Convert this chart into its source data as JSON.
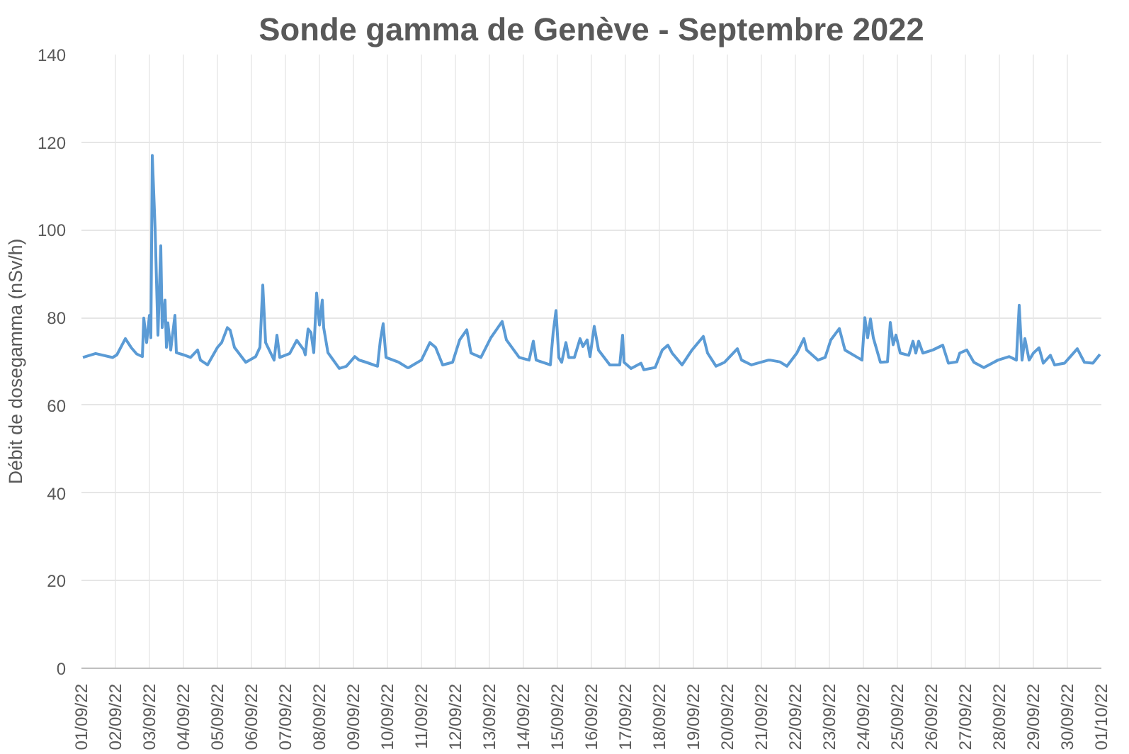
{
  "chart_data": {
    "type": "line",
    "title": "Sonde gamma de Genève - Septembre 2022",
    "ylabel": "Débit de dosegamma (nSv/h)",
    "xlim": [
      "2022-09-01",
      "2022-10-01"
    ],
    "xticks": [
      {
        "value": "2022-09-01",
        "label": "01/09/22"
      },
      {
        "value": "2022-09-02",
        "label": "02/09/22"
      },
      {
        "value": "2022-09-03",
        "label": "03/09/22"
      },
      {
        "value": "2022-09-04",
        "label": "04/09/22"
      },
      {
        "value": "2022-09-05",
        "label": "05/09/22"
      },
      {
        "value": "2022-09-06",
        "label": "06/09/22"
      },
      {
        "value": "2022-09-07",
        "label": "07/09/22"
      },
      {
        "value": "2022-09-08",
        "label": "08/09/22"
      },
      {
        "value": "2022-09-09",
        "label": "09/09/22"
      },
      {
        "value": "2022-09-10",
        "label": "10/09/22"
      },
      {
        "value": "2022-09-11",
        "label": "11/09/22"
      },
      {
        "value": "2022-09-12",
        "label": "12/09/22"
      },
      {
        "value": "2022-09-13",
        "label": "13/09/22"
      },
      {
        "value": "2022-09-14",
        "label": "14/09/22"
      },
      {
        "value": "2022-09-15",
        "label": "15/09/22"
      },
      {
        "value": "2022-09-16",
        "label": "16/09/22"
      },
      {
        "value": "2022-09-17",
        "label": "17/09/22"
      },
      {
        "value": "2022-09-18",
        "label": "18/09/22"
      },
      {
        "value": "2022-09-19",
        "label": "19/09/22"
      },
      {
        "value": "2022-09-20",
        "label": "20/09/22"
      },
      {
        "value": "2022-09-21",
        "label": "21/09/22"
      },
      {
        "value": "2022-09-22",
        "label": "22/09/22"
      },
      {
        "value": "2022-09-23",
        "label": "23/09/22"
      },
      {
        "value": "2022-09-24",
        "label": "24/09/22"
      },
      {
        "value": "2022-09-25",
        "label": "25/09/22"
      },
      {
        "value": "2022-09-26",
        "label": "26/09/22"
      },
      {
        "value": "2022-09-27",
        "label": "27/09/22"
      },
      {
        "value": "2022-09-28",
        "label": "28/09/22"
      },
      {
        "value": "2022-09-29",
        "label": "29/09/22"
      },
      {
        "value": "2022-09-30",
        "label": "30/09/22"
      },
      {
        "value": "2022-10-01",
        "label": "01/10/22"
      }
    ],
    "ylim": [
      0,
      140
    ],
    "yticks": [
      0,
      20,
      40,
      60,
      80,
      100,
      120,
      140
    ],
    "grid": true,
    "marker": "none",
    "line_style": "solid",
    "series": [
      {
        "color": "#5b9bd5",
        "x": [
          "2022-09-01T01:00",
          "2022-09-01T10:00",
          "2022-09-01T22:00",
          "2022-09-02T01:00",
          "2022-09-02T07:00",
          "2022-09-02T11:00",
          "2022-09-02T15:00",
          "2022-09-02T19:00",
          "2022-09-02T20:00",
          "2022-09-02T22:00",
          "2022-09-03T00:00",
          "2022-09-03T01:00",
          "2022-09-03T02:00",
          "2022-09-03T04:00",
          "2022-09-03T06:00",
          "2022-09-03T08:00",
          "2022-09-03T09:00",
          "2022-09-03T11:00",
          "2022-09-03T12:00",
          "2022-09-03T13:00",
          "2022-09-03T15:00",
          "2022-09-03T18:00",
          "2022-09-03T19:00",
          "2022-09-04T00:00",
          "2022-09-04T05:00",
          "2022-09-04T10:00",
          "2022-09-04T12:00",
          "2022-09-04T17:00",
          "2022-09-05T00:00",
          "2022-09-05T03:00",
          "2022-09-05T07:00",
          "2022-09-05T09:00",
          "2022-09-05T12:00",
          "2022-09-05T20:00",
          "2022-09-06T03:00",
          "2022-09-06T06:00",
          "2022-09-06T08:00",
          "2022-09-06T10:00",
          "2022-09-06T16:00",
          "2022-09-06T18:00",
          "2022-09-06T20:00",
          "2022-09-07T03:00",
          "2022-09-07T08:00",
          "2022-09-07T13:00",
          "2022-09-07T14:00",
          "2022-09-07T16:00",
          "2022-09-07T18:00",
          "2022-09-07T20:00",
          "2022-09-07T22:00",
          "2022-09-08T00:00",
          "2022-09-08T02:00",
          "2022-09-08T03:00",
          "2022-09-08T06:00",
          "2022-09-08T14:00",
          "2022-09-08T19:00",
          "2022-09-09T01:00",
          "2022-09-09T04:00",
          "2022-09-09T09:00",
          "2022-09-09T17:00",
          "2022-09-09T19:00",
          "2022-09-09T21:00",
          "2022-09-09T23:00",
          "2022-09-10T08:00",
          "2022-09-10T14:00",
          "2022-09-10T15:00",
          "2022-09-11T00:00",
          "2022-09-11T06:00",
          "2022-09-11T10:00",
          "2022-09-11T15:00",
          "2022-09-11T22:00",
          "2022-09-12T03:00",
          "2022-09-12T08:00",
          "2022-09-12T11:00",
          "2022-09-12T18:00",
          "2022-09-13T01:00",
          "2022-09-13T09:00",
          "2022-09-13T12:00",
          "2022-09-13T21:00",
          "2022-09-14T04:00",
          "2022-09-14T07:00",
          "2022-09-14T09:00",
          "2022-09-14T19:00",
          "2022-09-14T21:00",
          "2022-09-14T23:00",
          "2022-09-15T01:00",
          "2022-09-15T03:00",
          "2022-09-15T06:00",
          "2022-09-15T08:00",
          "2022-09-15T12:00",
          "2022-09-15T16:00",
          "2022-09-15T18:00",
          "2022-09-15T21:00",
          "2022-09-15T23:00",
          "2022-09-16T02:00",
          "2022-09-16T05:00",
          "2022-09-16T13:00",
          "2022-09-16T20:00",
          "2022-09-16T22:00",
          "2022-09-16T23:00",
          "2022-09-17T04:00",
          "2022-09-17T11:00",
          "2022-09-17T13:00",
          "2022-09-17T21:00",
          "2022-09-18T02:00",
          "2022-09-18T06:00",
          "2022-09-18T09:00",
          "2022-09-18T16:00",
          "2022-09-18T23:00",
          "2022-09-19T07:00",
          "2022-09-19T10:00",
          "2022-09-19T16:00",
          "2022-09-19T22:00",
          "2022-09-20T07:00",
          "2022-09-20T10:00",
          "2022-09-20T17:00",
          "2022-09-21T05:00",
          "2022-09-21T06:00",
          "2022-09-21T13:00",
          "2022-09-21T18:00",
          "2022-09-22T01:00",
          "2022-09-22T06:00",
          "2022-09-22T08:00",
          "2022-09-22T16:00",
          "2022-09-22T21:00",
          "2022-09-23T01:00",
          "2022-09-23T07:00",
          "2022-09-23T11:00",
          "2022-09-23T23:00",
          "2022-09-24T01:00",
          "2022-09-24T03:00",
          "2022-09-24T05:00",
          "2022-09-24T07:00",
          "2022-09-24T12:00",
          "2022-09-24T17:00",
          "2022-09-24T19:00",
          "2022-09-24T21:00",
          "2022-09-24T23:00",
          "2022-09-25T02:00",
          "2022-09-25T08:00",
          "2022-09-25T11:00",
          "2022-09-25T13:00",
          "2022-09-25T15:00",
          "2022-09-25T18:00",
          "2022-09-26T01:00",
          "2022-09-26T08:00",
          "2022-09-26T12:00",
          "2022-09-26T18:00",
          "2022-09-26T20:00",
          "2022-09-27T01:00",
          "2022-09-27T06:00",
          "2022-09-27T13:00",
          "2022-09-27T23:00",
          "2022-09-28T07:00",
          "2022-09-28T12:00",
          "2022-09-28T14:00",
          "2022-09-28T16:00",
          "2022-09-28T18:00",
          "2022-09-28T21:00",
          "2022-09-29T00:00",
          "2022-09-29T04:00",
          "2022-09-29T07:00",
          "2022-09-29T12:00",
          "2022-09-29T15:00",
          "2022-09-29T22:00",
          "2022-09-30T07:00",
          "2022-09-30T12:00",
          "2022-09-30T18:00",
          "2022-09-30T23:00"
        ],
        "values": [
          70.9,
          71.8,
          70.9,
          71.5,
          75.2,
          73.2,
          71.7,
          71.1,
          79.9,
          74.3,
          80.5,
          75.4,
          117,
          100.3,
          76,
          96.4,
          77.7,
          84,
          73.2,
          78.8,
          72.6,
          80.5,
          72,
          71.5,
          70.9,
          72.6,
          70.3,
          69.2,
          73.2,
          74.3,
          77.7,
          77.1,
          73.2,
          69.8,
          71.1,
          73.2,
          87.4,
          74.3,
          70.3,
          76,
          70.9,
          71.8,
          74.8,
          72.6,
          71.5,
          77.4,
          76.6,
          72,
          85.6,
          78.3,
          84,
          77.7,
          72,
          68.4,
          68.9,
          71.1,
          70.3,
          69.8,
          68.9,
          74.8,
          78.6,
          70.9,
          69.8,
          68.6,
          68.6,
          70.3,
          74.3,
          73.2,
          69.2,
          69.8,
          74.9,
          77.2,
          71.9,
          70.9,
          75.4,
          79.1,
          74.9,
          70.9,
          70.3,
          74.6,
          70.3,
          69.2,
          76.6,
          81.6,
          70.9,
          69.8,
          74.3,
          70.9,
          70.9,
          75.2,
          73.4,
          74.9,
          71.1,
          78,
          72.6,
          69.2,
          69.2,
          76,
          69.8,
          68.4,
          69.6,
          68.1,
          68.6,
          72.6,
          73.7,
          71.9,
          69.2,
          72.6,
          75.7,
          71.9,
          68.9,
          69.8,
          72.9,
          70.3,
          69.2,
          70.3,
          70.3,
          69.9,
          68.9,
          71.9,
          75.2,
          72.6,
          70.3,
          70.9,
          74.9,
          77.5,
          72.6,
          70.3,
          80,
          75.4,
          79.7,
          75.4,
          69.8,
          69.9,
          78.9,
          73.8,
          76,
          71.9,
          71.4,
          74.6,
          71.9,
          74.6,
          71.9,
          72.6,
          73.7,
          69.6,
          69.9,
          71.9,
          72.6,
          69.8,
          68.6,
          70.3,
          71.1,
          70.3,
          82.8,
          70.3,
          75.2,
          70.3,
          71.9,
          73.1,
          69.6,
          71.4,
          69.2,
          69.6,
          72.9,
          69.8,
          69.6,
          71.6
        ]
      }
    ]
  }
}
